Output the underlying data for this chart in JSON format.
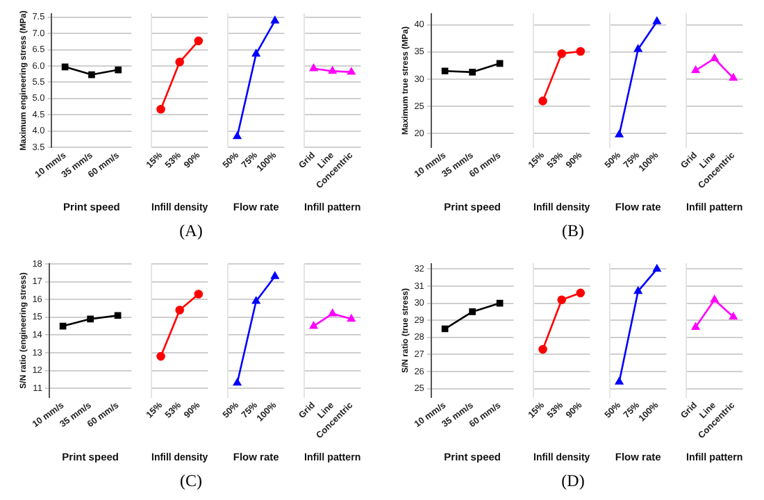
{
  "chart_data": [
    {
      "type": "line",
      "categories": [
        "10 mm/s",
        "35 mm/s",
        "60 mm/s"
      ],
      "values": [
        5.97,
        5.73,
        5.88
      ],
      "color": "#000000",
      "marker": "square",
      "xlabel": "Print speed",
      "ylabel": "Maximum engineering stress (MPa)",
      "ylim": [
        3.5,
        7.6
      ],
      "yticks": [
        {
          "value": 3.5,
          "label": "3.5"
        },
        {
          "value": 4,
          "label": "4.0"
        },
        {
          "value": 4.5,
          "label": "4.5"
        },
        {
          "value": 5,
          "label": "5.0"
        },
        {
          "value": 5.5,
          "label": "5.5"
        },
        {
          "value": 6,
          "label": "6.0"
        },
        {
          "value": 6.5,
          "label": "6.5"
        },
        {
          "value": 7,
          "label": "7.0"
        },
        {
          "value": 7.5,
          "label": "7.5"
        }
      ],
      "grid": "y",
      "annotations": [
        "(A)"
      ]
    },
    {
      "type": "line",
      "categories": [
        "15%",
        "53%",
        "90%"
      ],
      "values": [
        4.67,
        6.12,
        6.77
      ],
      "color": "#ff0000",
      "marker": "circle",
      "xlabel": "Infill density",
      "ylim": [
        3.5,
        7.6
      ],
      "yticks": [
        3.5,
        4,
        4.5,
        5,
        5.5,
        6,
        6.5,
        7,
        7.5
      ],
      "grid": "y",
      "tick_labels": "x"
    },
    {
      "type": "line",
      "categories": [
        "50%",
        "75%",
        "100%"
      ],
      "values": [
        3.83,
        6.37,
        7.39
      ],
      "color": "#0000ff",
      "marker": "triangle",
      "xlabel": "Flow rate",
      "ylim": [
        3.5,
        7.6
      ],
      "yticks": [
        3.5,
        4,
        4.5,
        5,
        5.5,
        6,
        6.5,
        7,
        7.5
      ],
      "grid": "y",
      "tick_labels": "x"
    },
    {
      "type": "line",
      "categories": [
        "Grid",
        "Line",
        "Concentric"
      ],
      "values": [
        5.92,
        5.84,
        5.81
      ],
      "color": "#ff00ff",
      "marker": "triangle",
      "xlabel": "Infill pattern",
      "ylim": [
        3.5,
        7.6
      ],
      "yticks": [
        3.5,
        4,
        4.5,
        5,
        5.5,
        6,
        6.5,
        7,
        7.5
      ],
      "grid": "y",
      "tick_labels": "x"
    },
    {
      "type": "line",
      "categories": [
        "10 mm/s",
        "35 mm/s",
        "60 mm/s"
      ],
      "values": [
        31.5,
        31.3,
        32.9
      ],
      "color": "#000000",
      "marker": "square",
      "xlabel": "Print speed",
      "ylabel": "Maximum true stress (MPa)",
      "ylim": [
        17.5,
        42
      ],
      "yticks": [
        20,
        25,
        30,
        35,
        40
      ],
      "grid": "y",
      "annotations": [
        "(B)"
      ]
    },
    {
      "type": "line",
      "categories": [
        "15%",
        "53%",
        "90%"
      ],
      "values": [
        26.0,
        34.7,
        35.1
      ],
      "color": "#ff0000",
      "marker": "circle",
      "xlabel": "Infill density",
      "ylim": [
        17.5,
        42
      ],
      "yticks": [
        20,
        25,
        30,
        35,
        40
      ],
      "grid": "y",
      "tick_labels": "x"
    },
    {
      "type": "line",
      "categories": [
        "50%",
        "75%",
        "100%"
      ],
      "values": [
        19.8,
        35.5,
        40.6
      ],
      "color": "#0000ff",
      "marker": "triangle",
      "xlabel": "Flow rate",
      "ylim": [
        17.5,
        42
      ],
      "yticks": [
        20,
        25,
        30,
        35,
        40
      ],
      "grid": "y",
      "tick_labels": "x"
    },
    {
      "type": "line",
      "categories": [
        "Grid",
        "Line",
        "Concentric"
      ],
      "values": [
        31.6,
        33.8,
        30.2
      ],
      "color": "#ff00ff",
      "marker": "triangle",
      "xlabel": "Infill pattern",
      "ylim": [
        17.5,
        42
      ],
      "yticks": [
        20,
        25,
        30,
        35,
        40
      ],
      "grid": "y",
      "tick_labels": "x"
    },
    {
      "type": "line",
      "categories": [
        "10 mm/s",
        "35 mm/s",
        "60 mm/s"
      ],
      "values": [
        14.5,
        14.9,
        15.1
      ],
      "color": "#000000",
      "marker": "square",
      "xlabel": "Print speed",
      "ylabel": "S/N ratio (engineering stress)",
      "ylim": [
        10.5,
        18
      ],
      "yticks": [
        11,
        12,
        13,
        14,
        15,
        16,
        17,
        18
      ],
      "grid": "y",
      "annotations": [
        "(C)"
      ]
    },
    {
      "type": "line",
      "categories": [
        "15%",
        "53%",
        "90%"
      ],
      "values": [
        12.8,
        15.4,
        16.3
      ],
      "color": "#ff0000",
      "marker": "circle",
      "xlabel": "Infill density",
      "ylim": [
        10.5,
        18
      ],
      "yticks": [
        11,
        12,
        13,
        14,
        15,
        16,
        17,
        18
      ],
      "grid": "y",
      "tick_labels": "x"
    },
    {
      "type": "line",
      "categories": [
        "50%",
        "75%",
        "100%"
      ],
      "values": [
        11.3,
        15.9,
        17.3
      ],
      "color": "#0000ff",
      "marker": "triangle",
      "xlabel": "Flow rate",
      "ylim": [
        10.5,
        18
      ],
      "yticks": [
        11,
        12,
        13,
        14,
        15,
        16,
        17,
        18
      ],
      "grid": "y",
      "tick_labels": "x"
    },
    {
      "type": "line",
      "categories": [
        "Grid",
        "Line",
        "Concentric"
      ],
      "values": [
        14.5,
        15.2,
        14.9
      ],
      "color": "#ff00ff",
      "marker": "triangle",
      "xlabel": "Infill pattern",
      "ylim": [
        10.5,
        18
      ],
      "yticks": [
        11,
        12,
        13,
        14,
        15,
        16,
        17,
        18
      ],
      "grid": "y",
      "tick_labels": "x"
    },
    {
      "type": "line",
      "categories": [
        "10 mm/s",
        "35 mm/s",
        "60 mm/s"
      ],
      "values": [
        28.5,
        29.5,
        30.0
      ],
      "color": "#000000",
      "marker": "square",
      "xlabel": "Print speed",
      "ylabel": "S/N ratio (true stress)",
      "ylim": [
        24.5,
        32.3
      ],
      "yticks": [
        25,
        26,
        27,
        28,
        29,
        30,
        31,
        32
      ],
      "grid": "y",
      "annotations": [
        "(D)"
      ]
    },
    {
      "type": "line",
      "categories": [
        "15%",
        "53%",
        "90%"
      ],
      "values": [
        27.3,
        30.2,
        30.6
      ],
      "color": "#ff0000",
      "marker": "circle",
      "xlabel": "Infill density",
      "ylim": [
        24.5,
        32.3
      ],
      "yticks": [
        25,
        26,
        27,
        28,
        29,
        30,
        31,
        32
      ],
      "grid": "y",
      "tick_labels": "x"
    },
    {
      "type": "line",
      "categories": [
        "50%",
        "75%",
        "100%"
      ],
      "values": [
        25.4,
        30.7,
        32.0
      ],
      "color": "#0000ff",
      "marker": "triangle",
      "xlabel": "Flow rate",
      "ylim": [
        24.5,
        32.3
      ],
      "yticks": [
        25,
        26,
        27,
        28,
        29,
        30,
        31,
        32
      ],
      "grid": "y",
      "tick_labels": "x"
    },
    {
      "type": "line",
      "categories": [
        "Grid",
        "Line",
        "Concentric"
      ],
      "values": [
        28.6,
        30.2,
        29.2
      ],
      "color": "#ff00ff",
      "marker": "triangle",
      "xlabel": "Infill pattern",
      "ylim": [
        24.5,
        32.3
      ],
      "yticks": [
        25,
        26,
        27,
        28,
        29,
        30,
        31,
        32
      ],
      "grid": "y",
      "tick_labels": "x"
    }
  ]
}
